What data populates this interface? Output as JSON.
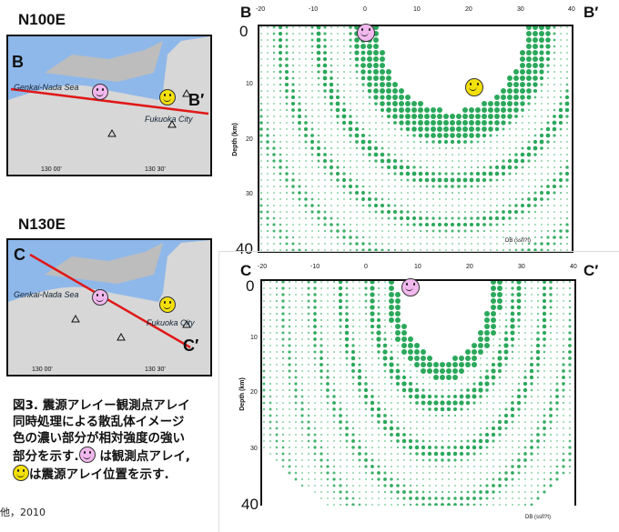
{
  "maps": [
    {
      "orientation": "N100E",
      "start": "B",
      "end": "B′",
      "sea": "Genkai-Nada Sea",
      "city": "Fukuoka City",
      "ticks": [
        "130 00'",
        "130 30'"
      ]
    },
    {
      "orientation": "N130E",
      "start": "C",
      "end": "C′",
      "sea": "Genkai-Nada Sea",
      "city": "Fukuoka City",
      "ticks": [
        "130 00'",
        "130 30'"
      ]
    }
  ],
  "chart_data": [
    {
      "type": "scatter",
      "start": "B",
      "end": "B′",
      "x_ticks": [
        "-20",
        "-10",
        "0",
        "10",
        "20",
        "30",
        "40"
      ],
      "xlim": [
        -20,
        40
      ],
      "ylim": [
        0,
        40
      ],
      "y_ticks": [
        "10",
        "20",
        "30"
      ],
      "y_big_ticks": [
        "0",
        "40"
      ],
      "ylabel": "Depth (km)",
      "legend": "DB (ssfi?t)",
      "station_x": 0,
      "station_depth": 0,
      "source_x": 17,
      "source_depth": 10
    },
    {
      "type": "scatter",
      "start": "C",
      "end": "C′",
      "x_ticks": [
        "-20",
        "-10",
        "0",
        "10",
        "20",
        "30",
        "40"
      ],
      "xlim": [
        -20,
        40
      ],
      "ylim": [
        0,
        40
      ],
      "y_ticks": [
        "10",
        "20",
        "30"
      ],
      "y_big_ticks": [
        "0",
        "40"
      ],
      "ylabel": "Depth (km)",
      "legend": "DB (ssfi?t)",
      "station_x": 0,
      "station_depth": 0
    }
  ],
  "caption": {
    "lines": [
      "図3. 震源アレイー観測点アレイ",
      "同時処理による散乱体イメージ",
      "色の濃い部分が相対強度の強い"
    ],
    "line4a": "部分を示す.",
    "line4b": "は観測点アレイ,",
    "line5": "は震源アレイ位置を示す."
  },
  "citation": "他，2010",
  "colors": {
    "scatter": "#2aa85a",
    "map_sea": "#8fb8ea",
    "profile_line": "#e01818",
    "station_face": "#f2b8ee",
    "source_face": "#f4e00a"
  }
}
